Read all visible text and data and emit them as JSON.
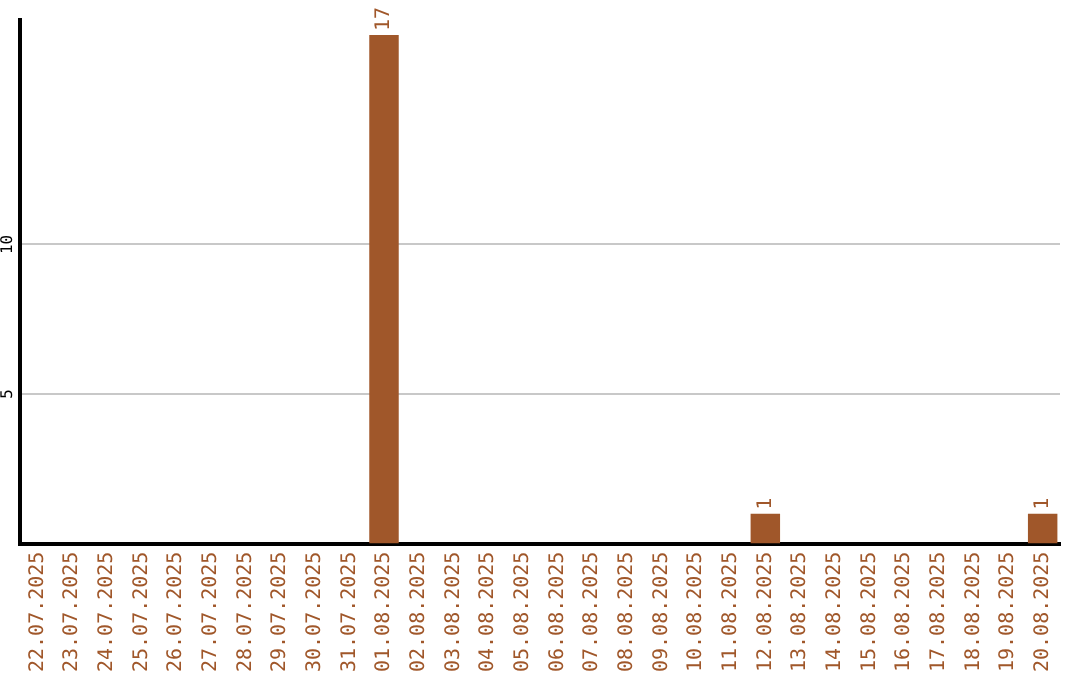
{
  "chart_data": {
    "type": "bar",
    "categories": [
      "22.07.2025",
      "23.07.2025",
      "24.07.2025",
      "25.07.2025",
      "26.07.2025",
      "27.07.2025",
      "28.07.2025",
      "29.07.2025",
      "30.07.2025",
      "31.07.2025",
      "01.08.2025",
      "02.08.2025",
      "03.08.2025",
      "04.08.2025",
      "05.08.2025",
      "06.08.2025",
      "07.08.2025",
      "08.08.2025",
      "09.08.2025",
      "10.08.2025",
      "11.08.2025",
      "12.08.2025",
      "13.08.2025",
      "14.08.2025",
      "15.08.2025",
      "16.08.2025",
      "17.08.2025",
      "18.08.2025",
      "19.08.2025",
      "20.08.2025"
    ],
    "values": [
      0,
      0,
      0,
      0,
      0,
      0,
      0,
      0,
      0,
      0,
      17,
      0,
      0,
      0,
      0,
      0,
      0,
      0,
      0,
      0,
      0,
      1,
      0,
      0,
      0,
      0,
      0,
      0,
      0,
      1
    ],
    "color": "#a0572a",
    "value_labels": [
      null,
      null,
      null,
      null,
      null,
      null,
      null,
      null,
      null,
      null,
      "17",
      null,
      null,
      null,
      null,
      null,
      null,
      null,
      null,
      null,
      null,
      "1",
      null,
      null,
      null,
      null,
      null,
      null,
      null,
      "1"
    ],
    "ylim": [
      0,
      17.5
    ],
    "yticks": [
      5,
      10
    ],
    "grid": "y",
    "legend": false
  }
}
